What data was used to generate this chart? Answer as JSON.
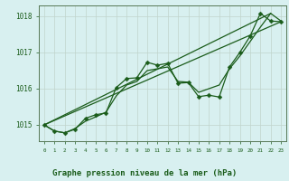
{
  "title": "Graphe pression niveau de la mer (hPa)",
  "bg_color": "#d8f0f0",
  "grid_color": "#c8ddd8",
  "line_color": "#1a5c1a",
  "label_color": "#1a5c1a",
  "bottom_bg": "#c8e8d8",
  "xlim": [
    -0.5,
    23.5
  ],
  "ylim": [
    1014.55,
    1018.3
  ],
  "yticks": [
    1015,
    1016,
    1017,
    1018
  ],
  "xticks": [
    0,
    1,
    2,
    3,
    4,
    5,
    6,
    7,
    8,
    9,
    10,
    11,
    12,
    13,
    14,
    15,
    16,
    17,
    18,
    19,
    20,
    21,
    22,
    23
  ],
  "s_zigzag": [
    1015.0,
    1014.83,
    1014.78,
    1014.88,
    1015.18,
    1015.28,
    1015.33,
    1016.03,
    1016.28,
    1016.3,
    1016.73,
    1016.65,
    1016.7,
    1016.15,
    1016.17,
    1015.78,
    1015.82,
    1015.77,
    1016.6,
    1017.0,
    1017.45,
    1018.08,
    1017.87,
    1017.85
  ],
  "s_trend1": [
    1015.0,
    1018.08
  ],
  "s_trend1_x": [
    0,
    22
  ],
  "s_trend2": [
    1015.0,
    1017.85
  ],
  "s_trend2_x": [
    0,
    23
  ],
  "s_smooth": [
    1015.0,
    1014.83,
    1014.78,
    1014.9,
    1015.1,
    1015.22,
    1015.35,
    1015.8,
    1016.1,
    1016.2,
    1016.5,
    1016.55,
    1016.6,
    1016.2,
    1016.18,
    1015.9,
    1016.0,
    1016.1,
    1016.55,
    1016.9,
    1017.3,
    1017.7,
    1018.08,
    1017.87
  ],
  "marker_size": 2.5,
  "line_width": 0.9
}
